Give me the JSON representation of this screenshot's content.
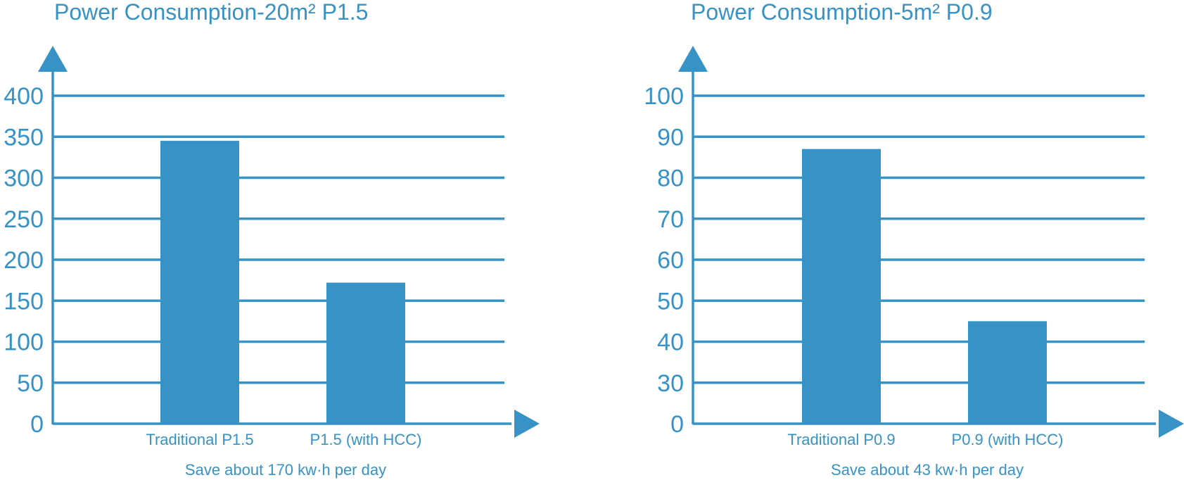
{
  "colors": {
    "accent": "#3792c6"
  },
  "chart_data": [
    {
      "type": "bar",
      "title": "Power Consumption-20m² P1.5",
      "categories": [
        "Traditional P1.5",
        "P1.5 (with HCC)"
      ],
      "values": [
        345,
        172
      ],
      "yticks": [
        0,
        50,
        100,
        150,
        200,
        250,
        300,
        350,
        400
      ],
      "ylim": [
        0,
        400
      ],
      "grid": true,
      "xlabel": "",
      "ylabel": "",
      "note": "Save about 170 kw·h per day"
    },
    {
      "type": "bar",
      "title": "Power Consumption-5m² P0.9",
      "categories": [
        "Traditional P0.9",
        "P0.9 (with HCC)"
      ],
      "values": [
        87,
        45
      ],
      "yticks": [
        0,
        30,
        40,
        50,
        60,
        70,
        80,
        90,
        100
      ],
      "ylim": [
        0,
        100
      ],
      "grid": true,
      "xlabel": "",
      "ylabel": "",
      "note": "Save about 43 kw·h per day"
    }
  ]
}
